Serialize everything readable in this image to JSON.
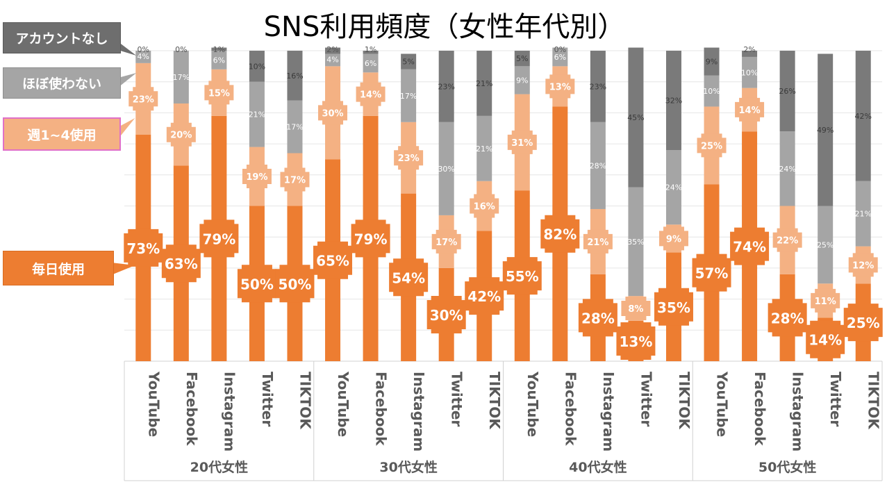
{
  "chart_data": {
    "type": "bar",
    "stacked": true,
    "title": "SNS利用頻度（女性年代別）",
    "ylim": [
      0,
      100
    ],
    "categories": [
      "YouTube",
      "Facebook",
      "Instagram",
      "Twitter",
      "TIKTOK",
      "YouTube",
      "Facebook",
      "Instagram",
      "Twitter",
      "TIKTOK",
      "YouTube",
      "Facebook",
      "Instagram",
      "Twitter",
      "TIKTOK",
      "YouTube",
      "Facebook",
      "Instagram",
      "Twitter",
      "TIKTOK"
    ],
    "groups": [
      {
        "label": "20代女性",
        "count": 5
      },
      {
        "label": "30代女性",
        "count": 5
      },
      {
        "label": "40代女性",
        "count": 5
      },
      {
        "label": "50代女性",
        "count": 5
      }
    ],
    "series": [
      {
        "name": "毎日使用",
        "key": "daily",
        "color": "#ed7d31",
        "values": [
          73,
          63,
          79,
          50,
          50,
          65,
          79,
          54,
          30,
          42,
          55,
          82,
          28,
          13,
          35,
          57,
          74,
          28,
          14,
          25
        ],
        "labels": [
          "73%",
          "63%",
          "79%",
          "50%",
          "50%",
          "65%",
          "79%",
          "54%",
          "30%",
          "42%",
          "55%",
          "82%",
          "28%",
          "13%",
          "35%",
          "57%",
          "74%",
          "28%",
          "14%",
          "25%"
        ]
      },
      {
        "name": "週1~4使用",
        "key": "weekly",
        "color": "#f4b183",
        "values": [
          23,
          20,
          15,
          19,
          17,
          30,
          14,
          23,
          17,
          16,
          31,
          13,
          21,
          8,
          9,
          25,
          14,
          22,
          11,
          12
        ],
        "labels": [
          "23%",
          "20%",
          "15%",
          "19%",
          "17%",
          "30%",
          "14%",
          "23%",
          "17%",
          "16%",
          "31%",
          "13%",
          "21%",
          "8%",
          "9%",
          "25%",
          "14%",
          "22%",
          "11%",
          "12%"
        ]
      },
      {
        "name": "ほぼ使わない",
        "key": "rare",
        "color": "#a5a5a5",
        "values": [
          4,
          17,
          6,
          21,
          17,
          4,
          6,
          17,
          30,
          21,
          9,
          6,
          28,
          35,
          24,
          10,
          10,
          24,
          25,
          21
        ],
        "labels": [
          "4%",
          "17%",
          "6%",
          "21%",
          "17%",
          "4%",
          "6%",
          "17%",
          "30%",
          "21%",
          "9%",
          "6%",
          "28%",
          "35%",
          "24%",
          "10%",
          "10%",
          "24%",
          "25%",
          "21%"
        ]
      },
      {
        "name": "アカウントなし",
        "key": "none",
        "color": "#7a7a7a",
        "values": [
          0,
          0,
          1,
          10,
          16,
          2,
          1,
          5,
          23,
          21,
          5,
          0,
          23,
          45,
          32,
          9,
          2,
          26,
          49,
          42
        ],
        "labels": [
          "0%",
          "0%",
          "1%",
          "10%",
          "16%",
          "2%",
          "1%",
          "5%",
          "23%",
          "21%",
          "5%",
          "0%",
          "23%",
          "45%",
          "32%",
          "9%",
          "2%",
          "26%",
          "49%",
          "42%"
        ]
      }
    ]
  }
}
